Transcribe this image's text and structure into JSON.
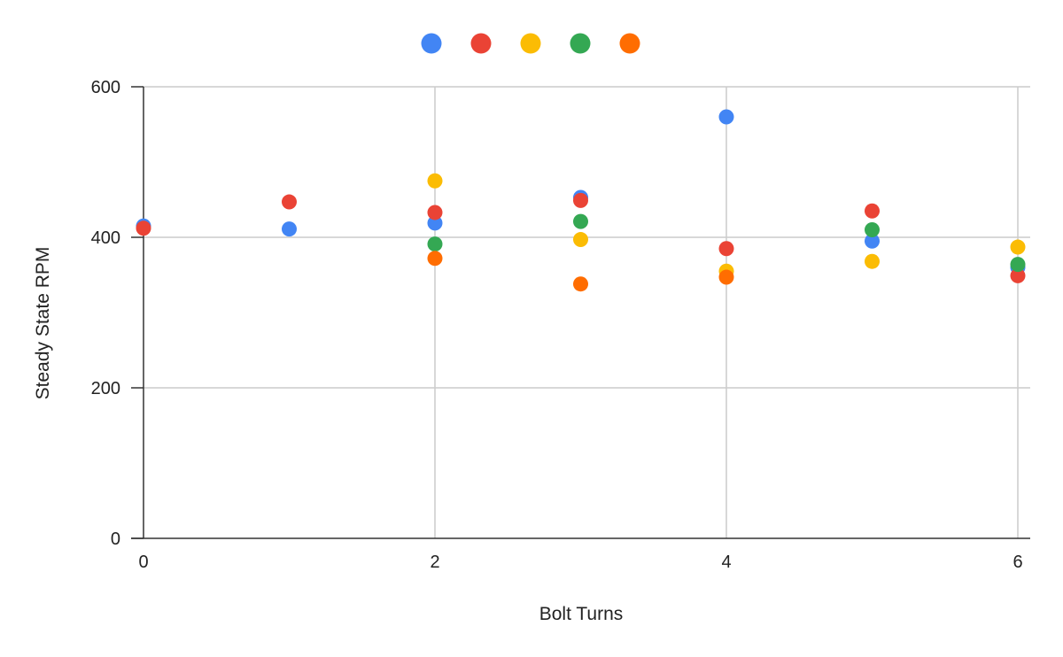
{
  "chart_data": {
    "type": "scatter",
    "title": "",
    "xlabel": "Bolt Turns",
    "ylabel": "Steady State RPM",
    "xlim": [
      0,
      6
    ],
    "ylim": [
      0,
      600
    ],
    "xticks": [
      0,
      2,
      4,
      6
    ],
    "yticks": [
      0,
      200,
      400,
      600
    ],
    "grid": true,
    "legend": "top",
    "series": [
      {
        "color": "#4285F4",
        "points": [
          [
            0,
            415
          ],
          [
            1,
            411
          ],
          [
            2,
            419
          ],
          [
            3,
            453
          ],
          [
            4,
            560
          ],
          [
            5,
            395
          ],
          [
            6,
            360
          ]
        ]
      },
      {
        "color": "#EA4335",
        "points": [
          [
            0,
            412
          ],
          [
            1,
            447
          ],
          [
            2,
            433
          ],
          [
            3,
            449
          ],
          [
            4,
            385
          ],
          [
            5,
            435
          ],
          [
            6,
            349
          ]
        ]
      },
      {
        "color": "#FBBC04",
        "points": [
          [
            2,
            475
          ],
          [
            3,
            397
          ],
          [
            4,
            355
          ],
          [
            5,
            368
          ],
          [
            6,
            387
          ]
        ]
      },
      {
        "color": "#34A853",
        "points": [
          [
            2,
            391
          ],
          [
            3,
            421
          ],
          [
            5,
            410
          ],
          [
            6,
            364
          ]
        ]
      },
      {
        "color": "#FF6D01",
        "points": [
          [
            2,
            372
          ],
          [
            3,
            338
          ],
          [
            4,
            347
          ]
        ]
      }
    ]
  }
}
